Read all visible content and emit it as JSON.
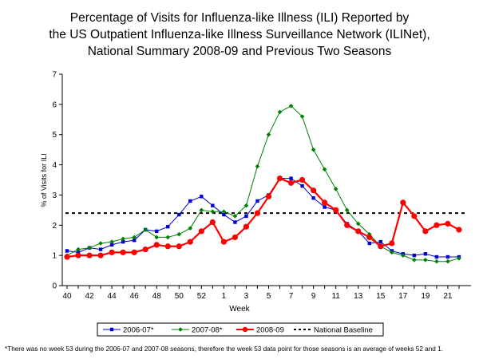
{
  "title_lines": [
    "Percentage of Visits for Influenza-like Illness (ILI) Reported by",
    "the US Outpatient Influenza-like Illness Surveillance Network (ILINet),",
    "National Summary 2008-09 and Previous Two Seasons"
  ],
  "footnote": "*There was no week 53 during the 2006-07 and 2007-08 seasons, therefore the week 53 data point for those seasons is an average of weeks 52 and 1.",
  "chart_data": {
    "type": "line",
    "xlabel": "Week",
    "ylabel": "% of Visits for ILI",
    "ylim": [
      0,
      7
    ],
    "yticks": [
      0,
      1,
      2,
      3,
      4,
      5,
      6,
      7
    ],
    "x": [
      "40",
      "41",
      "42",
      "43",
      "44",
      "45",
      "46",
      "47",
      "48",
      "49",
      "50",
      "51",
      "52",
      "53",
      "1",
      "2",
      "3",
      "4",
      "5",
      "6",
      "7",
      "8",
      "9",
      "10",
      "11",
      "12",
      "13",
      "14",
      "15",
      "16",
      "17",
      "18",
      "19",
      "20",
      "21",
      "22"
    ],
    "xtick_labels": [
      "40",
      "",
      "42",
      "",
      "44",
      "",
      "46",
      "",
      "48",
      "",
      "50",
      "",
      "52",
      "",
      "1",
      "",
      "3",
      "",
      "5",
      "",
      "7",
      "",
      "9",
      "",
      "11",
      "",
      "13",
      "",
      "15",
      "",
      "17",
      "",
      "19",
      "",
      "21",
      ""
    ],
    "grid": false,
    "legend_position": "bottom",
    "series": [
      {
        "name": "2006-07*",
        "color": "#0000cc",
        "marker": "square",
        "values": [
          1.15,
          1.1,
          1.25,
          1.2,
          1.35,
          1.45,
          1.5,
          1.85,
          1.8,
          1.95,
          2.35,
          2.8,
          2.95,
          2.65,
          2.35,
          2.1,
          2.3,
          2.8,
          3.0,
          3.55,
          3.55,
          3.3,
          2.9,
          2.6,
          2.5,
          2.05,
          1.8,
          1.4,
          1.45,
          1.15,
          1.05,
          1.0,
          1.05,
          0.95,
          0.95,
          0.95
        ]
      },
      {
        "name": "2007-08*",
        "color": "#008000",
        "marker": "diamond",
        "values": [
          1.0,
          1.2,
          1.25,
          1.4,
          1.45,
          1.55,
          1.6,
          1.85,
          1.6,
          1.6,
          1.7,
          1.9,
          2.5,
          2.45,
          2.45,
          2.3,
          2.65,
          3.95,
          5.0,
          5.75,
          5.95,
          5.6,
          4.5,
          3.85,
          3.2,
          2.5,
          2.05,
          1.7,
          1.3,
          1.1,
          1.0,
          0.85,
          0.85,
          0.8,
          0.8,
          0.9
        ]
      },
      {
        "name": "2008-09",
        "color": "#ff0000",
        "marker": "circle",
        "values": [
          0.95,
          1.0,
          1.0,
          1.0,
          1.1,
          1.1,
          1.1,
          1.2,
          1.35,
          1.3,
          1.3,
          1.45,
          1.8,
          2.1,
          1.45,
          1.6,
          1.95,
          2.4,
          2.95,
          3.55,
          3.4,
          3.5,
          3.15,
          2.75,
          2.5,
          2.0,
          1.8,
          1.6,
          1.3,
          1.4,
          2.75,
          2.3,
          1.8,
          2.0,
          2.05,
          1.85
        ]
      }
    ],
    "baseline": {
      "name": "National Baseline",
      "value": 2.4,
      "color": "#000000"
    }
  }
}
